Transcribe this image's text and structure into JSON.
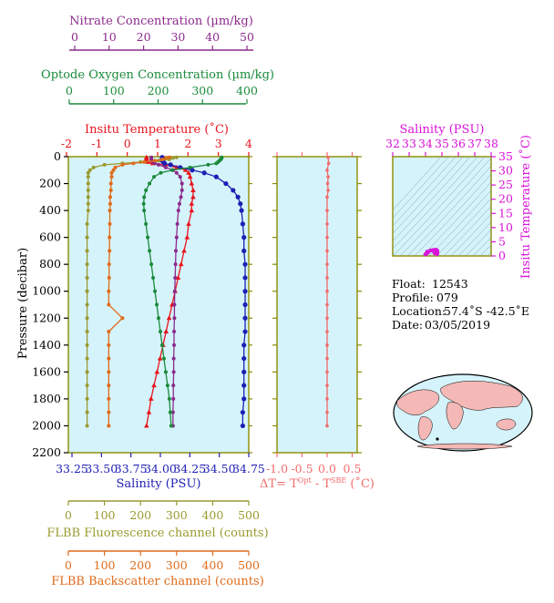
{
  "colors": {
    "nitrate": "#8b2a8b",
    "oxygen": "#1a8a3a",
    "temperature": "#e8131b",
    "salinity": "#1e1eb4",
    "fluorescence": "#9a9a30",
    "backscatter": "#e06a1a",
    "delta_t": "#f26b6b",
    "ts_axis": "#d812d8",
    "plot_bg": "#d5f3fb",
    "frame": "#8b8b00"
  },
  "axes": {
    "nitrate": {
      "label": "Nitrate Concentration (µm/kg)",
      "ticks": [
        "0",
        "10",
        "20",
        "30",
        "40",
        "50"
      ]
    },
    "oxygen": {
      "label": "Optode Oxygen Concentration (µm/kg)",
      "ticks": [
        "0",
        "100",
        "200",
        "300",
        "400"
      ]
    },
    "temperature": {
      "label": "Insitu Temperature (˚C)",
      "ticks": [
        "-2",
        "-1",
        "0",
        "1",
        "2",
        "3",
        "4"
      ]
    },
    "pressure": {
      "label": "Pressure (decibar)",
      "ticks": [
        "0",
        "200",
        "400",
        "600",
        "800",
        "1000",
        "1200",
        "1400",
        "1600",
        "1800",
        "2000",
        "2200"
      ]
    },
    "salinity": {
      "label": "Salinity (PSU)",
      "ticks": [
        "33.25",
        "33.50",
        "33.75",
        "34.00",
        "34.25",
        "34.50",
        "34.75"
      ]
    },
    "fluorescence": {
      "label": "FLBB Fluorescence channel (counts)",
      "ticks": [
        "0",
        "100",
        "200",
        "300",
        "400",
        "500"
      ]
    },
    "backscatter": {
      "label": "FLBB Backscatter channel (counts)",
      "ticks": [
        "0",
        "100",
        "200",
        "300",
        "400",
        "500"
      ]
    },
    "delta_t": {
      "label_main": "ΔT= T",
      "label_sup1": "Opt",
      "label_mid": " - T",
      "label_sup2": "SBE",
      "label_end": " (˚C)",
      "ticks": [
        "-1.0",
        "-0.5",
        "0.0",
        "0.5"
      ]
    },
    "ts_salinity": {
      "label": "Salinity (PSU)",
      "ticks": [
        "32",
        "33",
        "34",
        "35",
        "36",
        "37",
        "38"
      ]
    },
    "ts_temperature": {
      "label": "Insitu Temperature (˚C)",
      "ticks": [
        "0",
        "5",
        "10",
        "15",
        "20",
        "25",
        "30",
        "35"
      ]
    }
  },
  "info": {
    "float_label": "Float:",
    "float_value": "12543",
    "profile_label": "Profile:",
    "profile_value": "079",
    "location_label": "Location:",
    "location_value": "57.4˚S  -42.5˚E",
    "date_label": "Date:",
    "date_value": "03/05/2019"
  },
  "chart_data": [
    {
      "type": "line",
      "title": "",
      "ylabel": "Pressure (decibar)",
      "ylim": [
        2200,
        0
      ],
      "pressure": [
        5,
        10,
        20,
        30,
        40,
        50,
        60,
        80,
        100,
        120,
        150,
        200,
        250,
        300,
        350,
        400,
        500,
        600,
        700,
        800,
        900,
        1000,
        1100,
        1200,
        1300,
        1400,
        1500,
        1600,
        1700,
        1800,
        1900,
        2000
      ],
      "series": [
        {
          "name": "Insitu Temperature (˚C)",
          "xlim": [
            -2,
            4
          ],
          "values": [
            0.6,
            0.6,
            0.6,
            0.6,
            0.65,
            0.8,
            1.2,
            1.6,
            1.9,
            2.0,
            2.05,
            2.1,
            2.15,
            2.15,
            2.1,
            2.1,
            2.0,
            1.95,
            1.85,
            1.75,
            1.65,
            1.55,
            1.45,
            1.35,
            1.25,
            1.15,
            1.05,
            0.95,
            0.85,
            0.75,
            0.68,
            0.6
          ]
        },
        {
          "name": "Salinity (PSU)",
          "xlim": [
            33.25,
            34.75
          ],
          "values": [
            34.03,
            34.03,
            34.03,
            34.03,
            34.04,
            34.05,
            34.1,
            34.18,
            34.28,
            34.38,
            34.48,
            34.56,
            34.62,
            34.66,
            34.68,
            34.69,
            34.7,
            34.71,
            34.71,
            34.72,
            34.72,
            34.72,
            34.72,
            34.72,
            34.72,
            34.71,
            34.71,
            34.71,
            34.71,
            34.71,
            34.7,
            34.7
          ]
        },
        {
          "name": "Nitrate Concentration (µm/kg)",
          "xlim": [
            0,
            50
          ],
          "values": [
            23,
            23,
            23,
            23,
            23.5,
            24,
            25,
            27,
            29,
            30,
            31,
            31.5,
            31.5,
            31.2,
            30.8,
            30.5,
            30.2,
            30,
            29.8,
            29.7,
            29.6,
            29.5,
            29.4,
            29.4,
            29.3,
            29.3,
            29.2,
            29.2,
            29.1,
            29.1,
            29,
            29
          ]
        },
        {
          "name": "Optode Oxygen Concentration (µm/kg)",
          "xlim": [
            0,
            400
          ],
          "values": [
            340,
            340,
            338,
            335,
            332,
            328,
            310,
            270,
            230,
            205,
            190,
            180,
            172,
            168,
            167,
            168,
            172,
            176,
            180,
            184,
            188,
            192,
            196,
            200,
            204,
            208,
            212,
            216,
            220,
            224,
            226,
            228
          ]
        },
        {
          "name": "FLBB Fluorescence channel (counts)",
          "xlim": [
            0,
            500
          ],
          "values": [
            300,
            290,
            280,
            250,
            200,
            150,
            100,
            70,
            60,
            55,
            55,
            55,
            55,
            55,
            55,
            55,
            52,
            52,
            52,
            52,
            52,
            52,
            52,
            52,
            52,
            52,
            52,
            52,
            52,
            52,
            52,
            52
          ]
        },
        {
          "name": "FLBB Backscatter channel (counts)",
          "xlim": [
            0,
            500
          ],
          "values": [
            280,
            270,
            260,
            240,
            210,
            180,
            150,
            130,
            125,
            120,
            120,
            118,
            118,
            116,
            116,
            115,
            115,
            114,
            114,
            113,
            113,
            112,
            112,
            150,
            112,
            112,
            112,
            112,
            112,
            112,
            112,
            112
          ]
        }
      ]
    },
    {
      "type": "line",
      "xlabel": "ΔT= TOpt - TSBE (˚C)",
      "xlim": [
        -1.0,
        0.6
      ],
      "ylim": [
        2200,
        0
      ],
      "pressure": [
        5,
        50,
        100,
        150,
        200,
        250,
        300,
        400,
        500,
        600,
        700,
        800,
        900,
        1000,
        1100,
        1200,
        1300,
        1400,
        1500,
        1600,
        1700,
        1800,
        1900,
        2000
      ],
      "values": [
        0.02,
        0.03,
        0.0,
        0.02,
        0.01,
        0.02,
        0.0,
        0.0,
        0.0,
        0.0,
        0.0,
        0.0,
        0.0,
        0.0,
        0.0,
        0.0,
        0.0,
        0.0,
        0.0,
        0.0,
        0.0,
        0.0,
        0.0,
        0.0
      ]
    },
    {
      "type": "scatter",
      "xlabel": "Salinity (PSU)",
      "ylabel": "Insitu Temperature (˚C)",
      "xlim": [
        32,
        38
      ],
      "ylim": [
        0,
        35
      ],
      "points": [
        [
          34.0,
          0.6
        ],
        [
          34.05,
          0.8
        ],
        [
          34.15,
          1.2
        ],
        [
          34.3,
          1.9
        ],
        [
          34.4,
          2.0
        ],
        [
          34.5,
          2.1
        ],
        [
          34.6,
          2.15
        ],
        [
          34.65,
          2.1
        ],
        [
          34.7,
          2.0
        ],
        [
          34.72,
          1.6
        ],
        [
          34.72,
          1.2
        ],
        [
          34.71,
          0.8
        ],
        [
          34.7,
          0.6
        ],
        [
          34.1,
          1.5
        ],
        [
          34.55,
          1.0
        ]
      ]
    }
  ]
}
